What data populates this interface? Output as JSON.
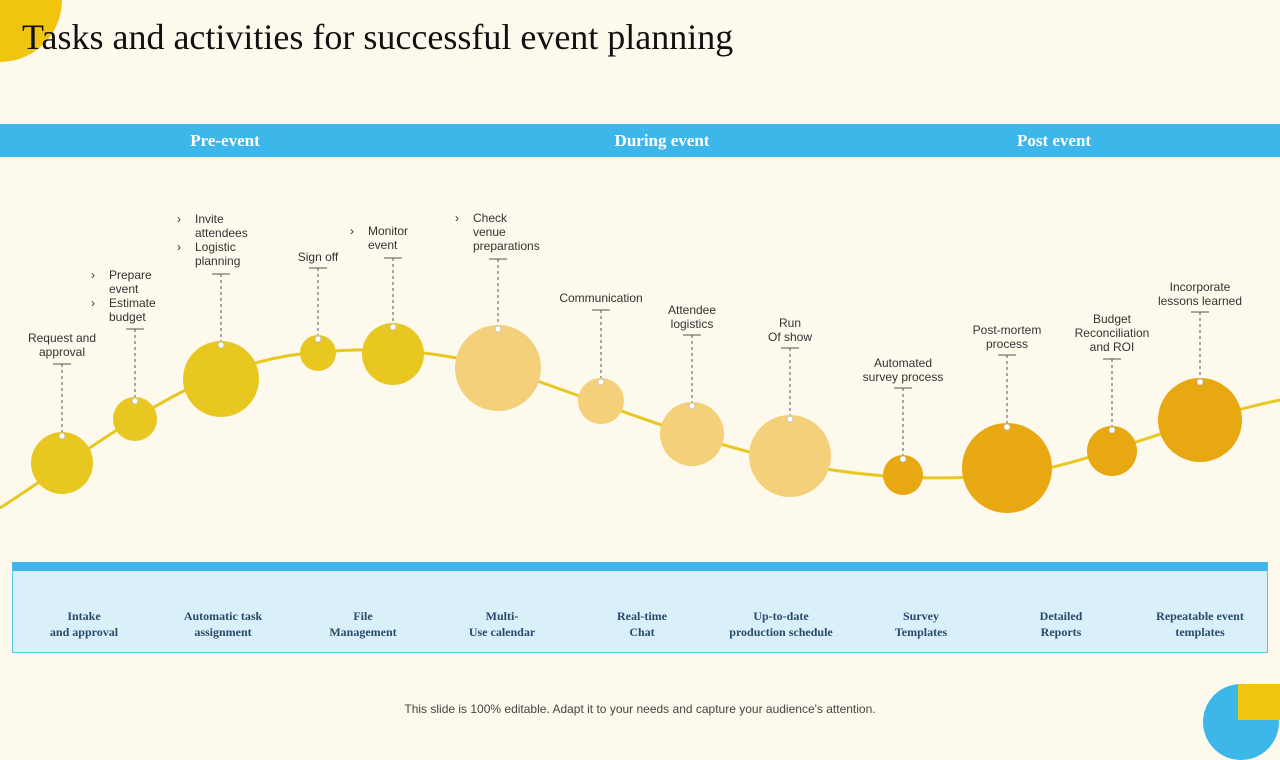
{
  "title": "Tasks and activities  for successful event planning",
  "phases": [
    "Pre-event",
    "During event",
    "Post event"
  ],
  "stages": [
    {
      "label": "Request and\napproval"
    },
    {
      "bullets": [
        "Prepare\nevent",
        "Estimate\nbudget"
      ]
    },
    {
      "bullets": [
        "Invite\nattendees",
        "Logistic\nplanning"
      ]
    },
    {
      "label": "Sign off"
    },
    {
      "bullets": [
        "Monitor\nevent"
      ]
    },
    {
      "bullets": [
        "Check\nvenue\npreparations"
      ]
    },
    {
      "label": "Communication"
    },
    {
      "label": "Attendee\nlogistics"
    },
    {
      "label": "Run\nOf show"
    },
    {
      "label": "Automated\nsurvey process"
    },
    {
      "label": "Post-mortem\nprocess"
    },
    {
      "label": "Budget\nReconciliation\nand ROI"
    },
    {
      "label": "Incorporate\nlessons learned"
    }
  ],
  "features": [
    "Intake\nand  approval",
    "Automatic  task\nassignment",
    "File\nManagement",
    "Multi-\nUse calendar",
    "Real-time\nChat",
    "Up-to-date\nproduction  schedule",
    "Survey\nTemplates",
    "Detailed\nReports",
    "Repeatable  event\ntemplates"
  ],
  "footer": "This slide is 100% editable. Adapt it to your needs and capture your audience's attention.",
  "colors": {
    "pre": "#e8c820",
    "during": "#f5d07a",
    "post": "#e8a812",
    "line": "#e8c820",
    "bar": "#3db6ea"
  }
}
